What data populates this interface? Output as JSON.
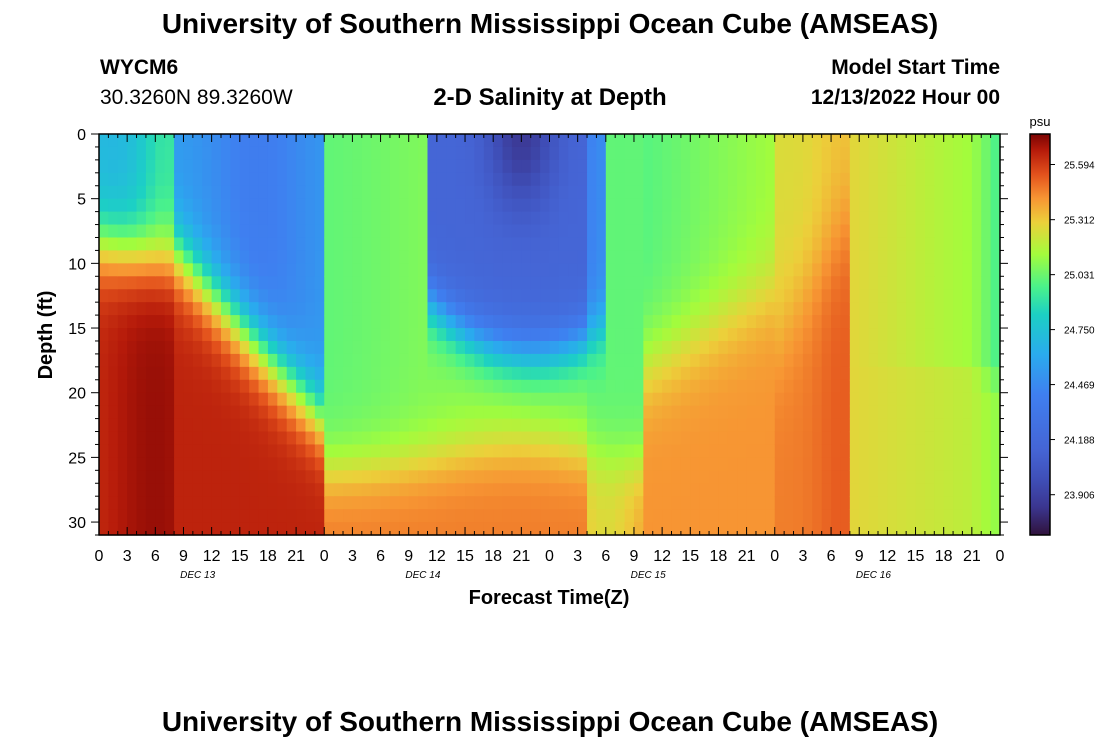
{
  "title_top": "University of Southern Mississippi Ocean Cube (AMSEAS)",
  "title_bottom": "University of Southern Mississippi Ocean Cube (AMSEAS)",
  "station": {
    "id": "WYCM6",
    "coords": "30.3260N  89.3260W"
  },
  "subtitle": "2-D Salinity at Depth",
  "model_start": {
    "label": "Model Start Time",
    "value": "12/13/2022 Hour 00"
  },
  "chart_data": {
    "type": "heatmap",
    "title": "2-D Salinity at Depth",
    "xlabel": "Forecast Time(Z)",
    "ylabel": "Depth (ft)",
    "x_ticks": [
      "0",
      "3",
      "6",
      "9",
      "12",
      "15",
      "18",
      "21",
      "0",
      "3",
      "6",
      "9",
      "12",
      "15",
      "18",
      "21",
      "0",
      "3",
      "6",
      "9",
      "12",
      "15",
      "18",
      "21",
      "0",
      "3",
      "6",
      "9",
      "12",
      "15",
      "18",
      "21",
      "0"
    ],
    "x_hours": [
      0,
      96
    ],
    "day_labels": [
      "DEC 13",
      "DEC 14",
      "DEC 15",
      "DEC 16"
    ],
    "y_ticks": [
      0,
      5,
      10,
      15,
      20,
      25,
      30
    ],
    "ylim": [
      31,
      0
    ],
    "colorbar": {
      "unit": "psu",
      "ticks": [
        "25.594",
        "25.312",
        "25.031",
        "24.750",
        "24.469",
        "24.188",
        "23.906"
      ],
      "range": [
        23.7,
        25.75
      ]
    },
    "grid": false
  }
}
